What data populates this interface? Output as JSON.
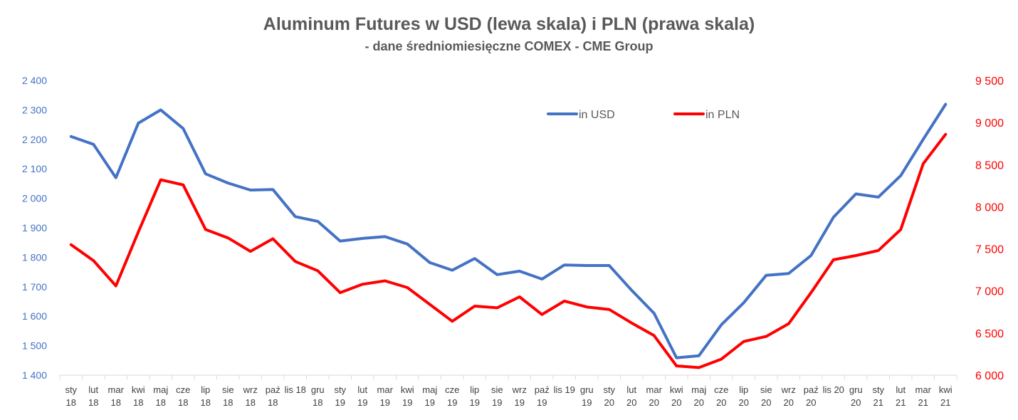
{
  "chart_data": {
    "type": "line",
    "title": "Aluminum Futures w USD (lewa skala) i PLN (prawa skala)",
    "subtitle": "- dane średniomiesięczne  COMEX - CME Group",
    "categories": [
      [
        "sty",
        "18"
      ],
      [
        "lut",
        "18"
      ],
      [
        "mar",
        "18"
      ],
      [
        "kwi",
        "18"
      ],
      [
        "maj",
        "18"
      ],
      [
        "cze",
        "18"
      ],
      [
        "lip",
        "18"
      ],
      [
        "sie",
        "18"
      ],
      [
        "wrz",
        "18"
      ],
      [
        "paź",
        "18"
      ],
      [
        "lis 18",
        ""
      ],
      [
        "gru",
        "18"
      ],
      [
        "sty",
        "19"
      ],
      [
        "lut",
        "19"
      ],
      [
        "mar",
        "19"
      ],
      [
        "kwi",
        "19"
      ],
      [
        "maj",
        "19"
      ],
      [
        "cze",
        "19"
      ],
      [
        "lip",
        "19"
      ],
      [
        "sie",
        "19"
      ],
      [
        "wrz",
        "19"
      ],
      [
        "paź",
        "19"
      ],
      [
        "lis 19",
        ""
      ],
      [
        "gru",
        "19"
      ],
      [
        "sty",
        "20"
      ],
      [
        "lut",
        "20"
      ],
      [
        "mar",
        "20"
      ],
      [
        "kwi",
        "20"
      ],
      [
        "maj",
        "20"
      ],
      [
        "cze",
        "20"
      ],
      [
        "lip",
        "20"
      ],
      [
        "sie",
        "20"
      ],
      [
        "wrz",
        "20"
      ],
      [
        "paź",
        "20"
      ],
      [
        "lis 20",
        ""
      ],
      [
        "gru",
        "20"
      ],
      [
        "sty",
        "21"
      ],
      [
        "lut",
        "21"
      ],
      [
        "mar",
        "21"
      ],
      [
        "kwi",
        "21"
      ]
    ],
    "y_left": {
      "min": 1400,
      "max": 2400,
      "ticks": [
        "1 400",
        "1 500",
        "1 600",
        "1 700",
        "1 800",
        "1 900",
        "2 000",
        "2 100",
        "2 200",
        "2 300",
        "2 400"
      ],
      "color": "#4472C4"
    },
    "y_right": {
      "min": 6000,
      "max": 9500,
      "ticks": [
        "6 000",
        "6 500",
        "7 000",
        "7 500",
        "8 000",
        "8 500",
        "9 000",
        "9 500"
      ],
      "color": "#FF0000"
    },
    "series": [
      {
        "name": "in USD",
        "axis": "left",
        "color": "#4472C4",
        "values": [
          2210,
          2183,
          2070,
          2255,
          2300,
          2237,
          2083,
          2052,
          2028,
          2030,
          1938,
          1922,
          1855,
          1864,
          1870,
          1845,
          1782,
          1756,
          1796,
          1741,
          1753,
          1726,
          1774,
          1772,
          1772,
          1688,
          1610,
          1459,
          1466,
          1571,
          1646,
          1739,
          1745,
          1806,
          1936,
          2015,
          2004,
          2077,
          2200,
          2319
        ]
      },
      {
        "name": "in PLN",
        "axis": "right",
        "color": "#FF0000",
        "values": [
          7550,
          7360,
          7060,
          7700,
          8320,
          8260,
          7730,
          7630,
          7470,
          7620,
          7350,
          7240,
          6980,
          7080,
          7120,
          7040,
          6840,
          6640,
          6820,
          6800,
          6930,
          6720,
          6880,
          6810,
          6780,
          6620,
          6470,
          6110,
          6090,
          6190,
          6400,
          6460,
          6610,
          6980,
          7370,
          7420,
          7480,
          7730,
          8510,
          8860
        ]
      }
    ],
    "legend_position": "top-center"
  }
}
